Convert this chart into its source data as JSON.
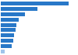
{
  "values": [
    7300,
    3900,
    2600,
    1950,
    1700,
    1550,
    1400,
    1300,
    1150,
    380
  ],
  "bar_color": "#2878c8",
  "last_bar_color": "#a0c4ea",
  "background_color": "#ffffff",
  "xlim": [
    0,
    8200
  ]
}
